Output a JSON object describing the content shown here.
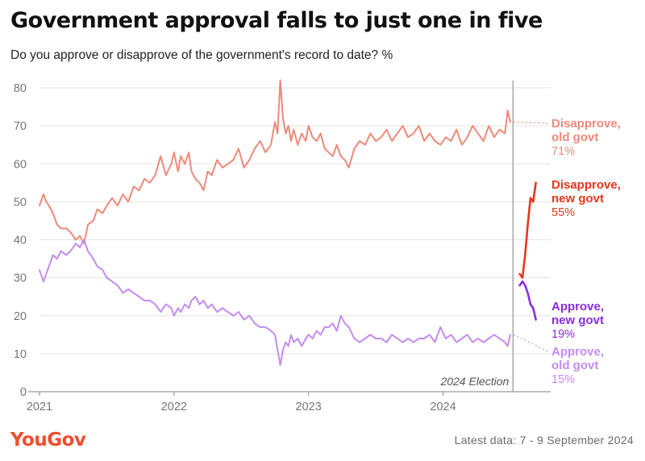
{
  "title": "Government approval falls to just one in five",
  "subtitle": "Do you approve or disapprove of the government's record to date? %",
  "logo": "YouGov",
  "footer_note": "Latest data: 7 - 9 September 2024",
  "colors": {
    "disapprove_old": "#ee8a7a",
    "disapprove_new": "#e8361c",
    "approve_old": "#c48cf0",
    "approve_new": "#8a2be2",
    "brand": "#f04e2e",
    "grid": "#e3e3e3",
    "axis": "#9a9a9a"
  },
  "chart_data": {
    "type": "line",
    "xlabel": "",
    "ylabel": "",
    "ylim": [
      0,
      80
    ],
    "yticks": [
      0,
      10,
      20,
      30,
      40,
      50,
      60,
      70,
      80
    ],
    "xlim": [
      2021.0,
      2024.8
    ],
    "xticks": [
      {
        "value": 2021,
        "label": "2021"
      },
      {
        "value": 2022,
        "label": "2022"
      },
      {
        "value": 2023,
        "label": "2023"
      },
      {
        "value": 2024,
        "label": "2024"
      }
    ],
    "grid": true,
    "annotations": [
      {
        "type": "vline",
        "x": 2024.52,
        "label": "2024 Election"
      }
    ],
    "series": [
      {
        "name": "Disapprove, old govt",
        "label_lines": [
          "Disapprove,",
          "old govt"
        ],
        "latest_label": "71%",
        "color_key": "disapprove_old",
        "x": [
          2021.0,
          2021.03,
          2021.05,
          2021.07,
          2021.1,
          2021.13,
          2021.16,
          2021.2,
          2021.23,
          2021.27,
          2021.3,
          2021.33,
          2021.36,
          2021.4,
          2021.43,
          2021.47,
          2021.5,
          2021.54,
          2021.58,
          2021.62,
          2021.66,
          2021.7,
          2021.74,
          2021.78,
          2021.82,
          2021.86,
          2021.9,
          2021.94,
          2021.98,
          2022.0,
          2022.03,
          2022.05,
          2022.08,
          2022.11,
          2022.13,
          2022.16,
          2022.19,
          2022.22,
          2022.25,
          2022.28,
          2022.32,
          2022.36,
          2022.4,
          2022.44,
          2022.48,
          2022.52,
          2022.56,
          2022.6,
          2022.64,
          2022.68,
          2022.72,
          2022.75,
          2022.77,
          2022.79,
          2022.81,
          2022.83,
          2022.85,
          2022.87,
          2022.89,
          2022.92,
          2022.95,
          2022.98,
          2023.0,
          2023.03,
          2023.06,
          2023.09,
          2023.12,
          2023.15,
          2023.18,
          2023.21,
          2023.24,
          2023.27,
          2023.3,
          2023.34,
          2023.38,
          2023.42,
          2023.46,
          2023.5,
          2023.54,
          2023.58,
          2023.62,
          2023.66,
          2023.7,
          2023.74,
          2023.78,
          2023.82,
          2023.86,
          2023.9,
          2023.94,
          2023.98,
          2024.02,
          2024.06,
          2024.1,
          2024.14,
          2024.18,
          2024.22,
          2024.26,
          2024.3,
          2024.34,
          2024.38,
          2024.42,
          2024.46,
          2024.48,
          2024.5
        ],
        "values": [
          49,
          52,
          50,
          49,
          47,
          44,
          43,
          43,
          42,
          40,
          41,
          39,
          44,
          45,
          48,
          47,
          49,
          51,
          49,
          52,
          50,
          54,
          53,
          56,
          55,
          57,
          62,
          57,
          60,
          63,
          58,
          62,
          60,
          63,
          58,
          56,
          55,
          53,
          58,
          57,
          61,
          59,
          60,
          61,
          64,
          59,
          61,
          64,
          66,
          63,
          65,
          71,
          68,
          82,
          72,
          68,
          70,
          66,
          69,
          65,
          68,
          66,
          70,
          67,
          66,
          68,
          64,
          63,
          62,
          65,
          62,
          61,
          59,
          64,
          66,
          65,
          68,
          66,
          67,
          69,
          66,
          68,
          70,
          67,
          68,
          70,
          66,
          68,
          66,
          65,
          67,
          66,
          69,
          65,
          67,
          70,
          68,
          66,
          70,
          67,
          69,
          68,
          74,
          71
        ]
      },
      {
        "name": "Approve, old govt",
        "label_lines": [
          "Approve,",
          "old govt"
        ],
        "latest_label": "15%",
        "color_key": "approve_old",
        "x": [
          2021.0,
          2021.03,
          2021.05,
          2021.07,
          2021.1,
          2021.13,
          2021.16,
          2021.2,
          2021.23,
          2021.27,
          2021.3,
          2021.33,
          2021.36,
          2021.4,
          2021.43,
          2021.47,
          2021.5,
          2021.54,
          2021.58,
          2021.62,
          2021.66,
          2021.7,
          2021.74,
          2021.78,
          2021.82,
          2021.86,
          2021.9,
          2021.94,
          2021.98,
          2022.0,
          2022.03,
          2022.05,
          2022.08,
          2022.11,
          2022.13,
          2022.16,
          2022.19,
          2022.22,
          2022.25,
          2022.28,
          2022.32,
          2022.36,
          2022.4,
          2022.44,
          2022.48,
          2022.52,
          2022.56,
          2022.6,
          2022.64,
          2022.68,
          2022.72,
          2022.75,
          2022.77,
          2022.79,
          2022.81,
          2022.83,
          2022.85,
          2022.87,
          2022.89,
          2022.92,
          2022.95,
          2022.98,
          2023.0,
          2023.03,
          2023.06,
          2023.09,
          2023.12,
          2023.15,
          2023.18,
          2023.21,
          2023.24,
          2023.27,
          2023.3,
          2023.34,
          2023.38,
          2023.42,
          2023.46,
          2023.5,
          2023.54,
          2023.58,
          2023.62,
          2023.66,
          2023.7,
          2023.74,
          2023.78,
          2023.82,
          2023.86,
          2023.9,
          2023.94,
          2023.98,
          2024.02,
          2024.06,
          2024.1,
          2024.14,
          2024.18,
          2024.22,
          2024.26,
          2024.3,
          2024.34,
          2024.38,
          2024.42,
          2024.46,
          2024.48,
          2024.5
        ],
        "values": [
          32,
          29,
          31,
          33,
          36,
          35,
          37,
          36,
          37,
          39,
          38,
          40,
          37,
          35,
          33,
          32,
          30,
          29,
          28,
          26,
          27,
          26,
          25,
          24,
          24,
          23,
          21,
          23,
          22,
          20,
          22,
          21,
          23,
          22,
          24,
          25,
          23,
          24,
          22,
          23,
          21,
          22,
          21,
          20,
          21,
          19,
          20,
          18,
          17,
          17,
          16,
          15,
          11,
          7,
          11,
          13,
          12,
          15,
          13,
          14,
          12,
          14,
          15,
          14,
          16,
          15,
          17,
          17,
          18,
          16,
          20,
          18,
          17,
          14,
          13,
          14,
          15,
          14,
          14,
          13,
          15,
          14,
          13,
          14,
          13,
          14,
          14,
          15,
          13,
          17,
          14,
          15,
          13,
          14,
          15,
          13,
          14,
          13,
          14,
          15,
          14,
          13,
          12,
          15
        ]
      },
      {
        "name": "Disapprove, new govt",
        "label_lines": [
          "Disapprove,",
          "new govt"
        ],
        "latest_label": "55%",
        "color_key": "disapprove_new",
        "x": [
          2024.57,
          2024.59,
          2024.61,
          2024.63,
          2024.65,
          2024.67,
          2024.69
        ],
        "values": [
          31,
          30,
          36,
          44,
          51,
          50,
          55
        ]
      },
      {
        "name": "Approve, new govt",
        "label_lines": [
          "Approve,",
          "new govt"
        ],
        "latest_label": "19%",
        "color_key": "approve_new",
        "x": [
          2024.57,
          2024.59,
          2024.61,
          2024.63,
          2024.65,
          2024.67,
          2024.69
        ],
        "values": [
          28,
          29,
          28,
          26,
          23,
          22,
          19
        ]
      }
    ]
  }
}
